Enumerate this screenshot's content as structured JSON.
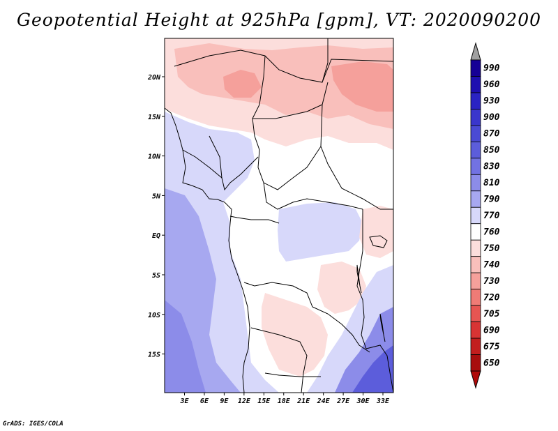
{
  "title": "Geopotential Height at 925hPa [gpm], VT: 2020090200",
  "credit": "GrADS: IGES/COLA",
  "map": {
    "variable": "Geopotential Height",
    "level": "925hPa",
    "units": "gpm",
    "valid_time": "2020090200",
    "lat_labels": [
      "20N",
      "15N",
      "10N",
      "5N",
      "EQ",
      "5S",
      "10S",
      "15S"
    ],
    "lon_labels": [
      "3E",
      "6E",
      "9E",
      "12E",
      "15E",
      "18E",
      "21E",
      "24E",
      "27E",
      "30E",
      "33E"
    ]
  },
  "colorbar": {
    "levels": [
      {
        "label": "990",
        "color": "#160096"
      },
      {
        "label": "960",
        "color": "#1e0fb0"
      },
      {
        "label": "930",
        "color": "#2a23c3"
      },
      {
        "label": "900",
        "color": "#3a36cc"
      },
      {
        "label": "870",
        "color": "#4a4ad4"
      },
      {
        "label": "850",
        "color": "#5c5ddb"
      },
      {
        "label": "830",
        "color": "#7272e2"
      },
      {
        "label": "810",
        "color": "#8c8ce9"
      },
      {
        "label": "790",
        "color": "#a7a8f0"
      },
      {
        "label": "770",
        "color": "#d7d8fa"
      },
      {
        "label": "760",
        "color": "#ffffff"
      },
      {
        "label": "750",
        "color": "#fcdedc"
      },
      {
        "label": "740",
        "color": "#f9bfbb"
      },
      {
        "label": "730",
        "color": "#f5a09b"
      },
      {
        "label": "720",
        "color": "#ef7b76"
      },
      {
        "label": "705",
        "color": "#e65552"
      },
      {
        "label": "690",
        "color": "#d83434"
      },
      {
        "label": "675",
        "color": "#c21e1e"
      },
      {
        "label": "650",
        "color": "#a80e0e"
      }
    ],
    "over_color": "#a0a0a0",
    "under_color": "#b00a0a"
  },
  "palette": {
    "blue_deep": "#5c5ddb",
    "blue_mid": "#8c8ce9",
    "blue_light": "#a7a8f0",
    "blue_pale": "#d7d8fa",
    "white": "#ffffff",
    "pink_pale": "#fcdedc",
    "pink_light": "#f9bfbb",
    "pink_mid": "#f5a09b"
  }
}
